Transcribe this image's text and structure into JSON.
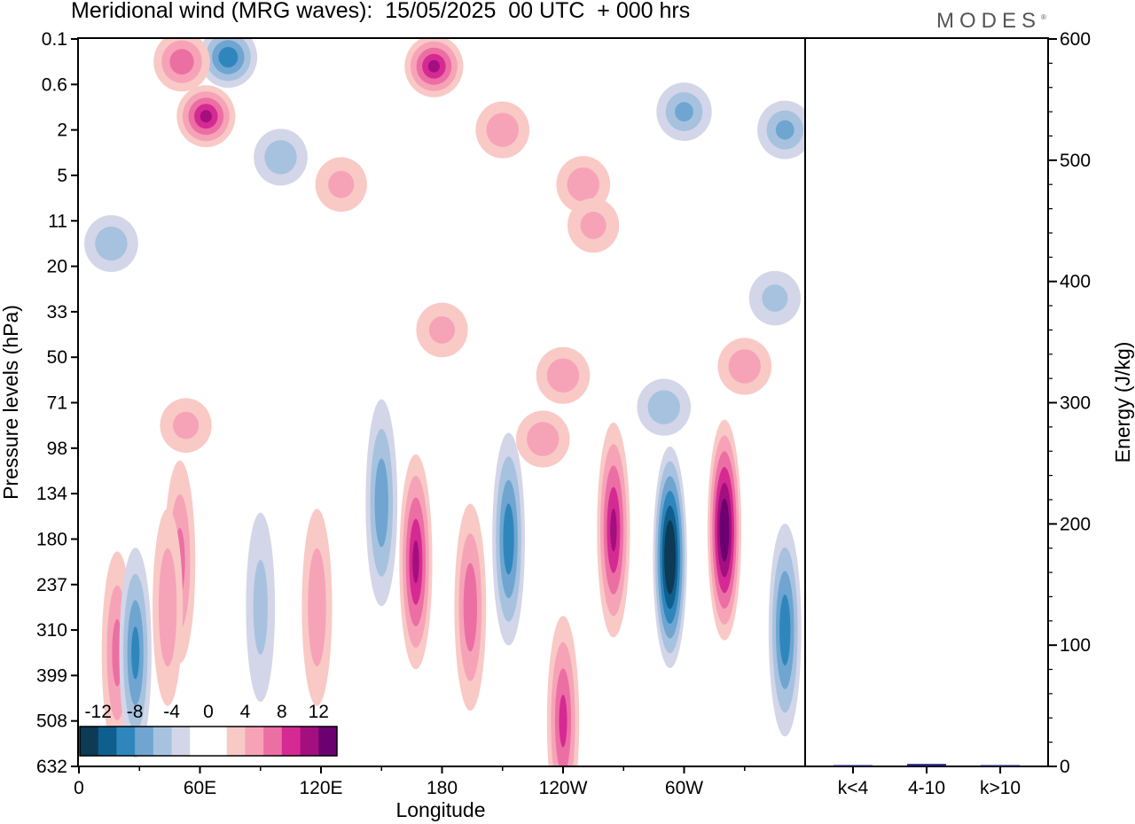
{
  "header": {
    "title": "Meridional wind (MRG waves):  15/05/2025  00 UTC  + 000 hrs",
    "logo": "MODES"
  },
  "chart_data": [
    {
      "type": "heatmap",
      "title": "Meridional wind (MRG waves):  15/05/2025  00 UTC  + 000 hrs",
      "xlabel": "Longitude",
      "ylabel": "Pressure levels (hPa)",
      "x_ticks": [
        "0",
        "60E",
        "120E",
        "180",
        "120W",
        "60W"
      ],
      "x_tick_lon": [
        0,
        60,
        120,
        180,
        240,
        300
      ],
      "x_range": [
        0,
        360
      ],
      "y_ticks": [
        "0.1",
        "0.6",
        "2",
        "5",
        "11",
        "20",
        "33",
        "50",
        "71",
        "98",
        "134",
        "180",
        "237",
        "310",
        "399",
        "508",
        "632"
      ],
      "colorbar": {
        "labels": [
          "-12",
          "-8",
          "-4",
          "0",
          "4",
          "8",
          "12"
        ],
        "colors": [
          "#0d3a55",
          "#0f5f8e",
          "#2f86bd",
          "#6fa5d0",
          "#a7c2df",
          "#d3d6e8",
          "#ffffff",
          "#ffffff",
          "#f9c9c6",
          "#f6a3b8",
          "#ec6fa3",
          "#d52a93",
          "#a40f80",
          "#6c0070"
        ]
      },
      "features": [
        {
          "lon": 16,
          "lev": 4.5,
          "value": -5
        },
        {
          "lon": 19,
          "lev": 13.5,
          "value": 6
        },
        {
          "lon": 28,
          "lev": 13.5,
          "value": -8
        },
        {
          "lon": 50,
          "lev": 11.5,
          "value": 6
        },
        {
          "lon": 63,
          "lev": 1.7,
          "value": 10
        },
        {
          "lon": 74,
          "lev": 0.4,
          "value": -9
        },
        {
          "lon": 51,
          "lev": 0.5,
          "value": 7
        },
        {
          "lon": 100,
          "lev": 2.6,
          "value": -5
        },
        {
          "lon": 150,
          "lev": 10.2,
          "value": -7
        },
        {
          "lon": 167,
          "lev": 11.5,
          "value": 10
        },
        {
          "lon": 194,
          "lev": 12.5,
          "value": 7
        },
        {
          "lon": 213,
          "lev": 11,
          "value": -9
        },
        {
          "lon": 240,
          "lev": 15,
          "value": 8
        },
        {
          "lon": 265,
          "lev": 10.8,
          "value": 10
        },
        {
          "lon": 293,
          "lev": 11.4,
          "value": -15
        },
        {
          "lon": 320,
          "lev": 10.8,
          "value": 14
        },
        {
          "lon": 350,
          "lev": 13,
          "value": -9
        },
        {
          "lon": 176,
          "lev": 0.6,
          "value": 10
        },
        {
          "lon": 210,
          "lev": 2,
          "value": 5
        },
        {
          "lon": 250,
          "lev": 3.2,
          "value": 5
        },
        {
          "lon": 300,
          "lev": 1.6,
          "value": -6
        },
        {
          "lon": 350,
          "lev": 2,
          "value": -6
        },
        {
          "lon": 330,
          "lev": 7.2,
          "value": 5
        },
        {
          "lon": 230,
          "lev": 8.8,
          "value": 5
        },
        {
          "lon": 255,
          "lev": 4.1,
          "value": 4
        },
        {
          "lon": 130,
          "lev": 3.2,
          "value": 4
        },
        {
          "lon": 180,
          "lev": 6.4,
          "value": 4
        },
        {
          "lon": 53,
          "lev": 8.5,
          "value": 4
        },
        {
          "lon": 240,
          "lev": 7.4,
          "value": 5
        },
        {
          "lon": 290,
          "lev": 8.1,
          "value": -5
        },
        {
          "lon": 44,
          "lev": 12.5,
          "value": 5
        },
        {
          "lon": 90,
          "lev": 12.5,
          "value": -4
        },
        {
          "lon": 118,
          "lev": 12.5,
          "value": 5
        },
        {
          "lon": 345,
          "lev": 5.7,
          "value": -4
        }
      ]
    },
    {
      "type": "bar",
      "categories": [
        "k<4",
        "4-10",
        "k>10"
      ],
      "values": [
        0,
        2,
        0
      ],
      "ylabel": "Energy (J/kg)",
      "ylim": [
        0,
        600
      ],
      "y_ticks": [
        "0",
        "100",
        "200",
        "300",
        "400",
        "500",
        "600"
      ],
      "bar_color": "#1a1a6e"
    }
  ]
}
